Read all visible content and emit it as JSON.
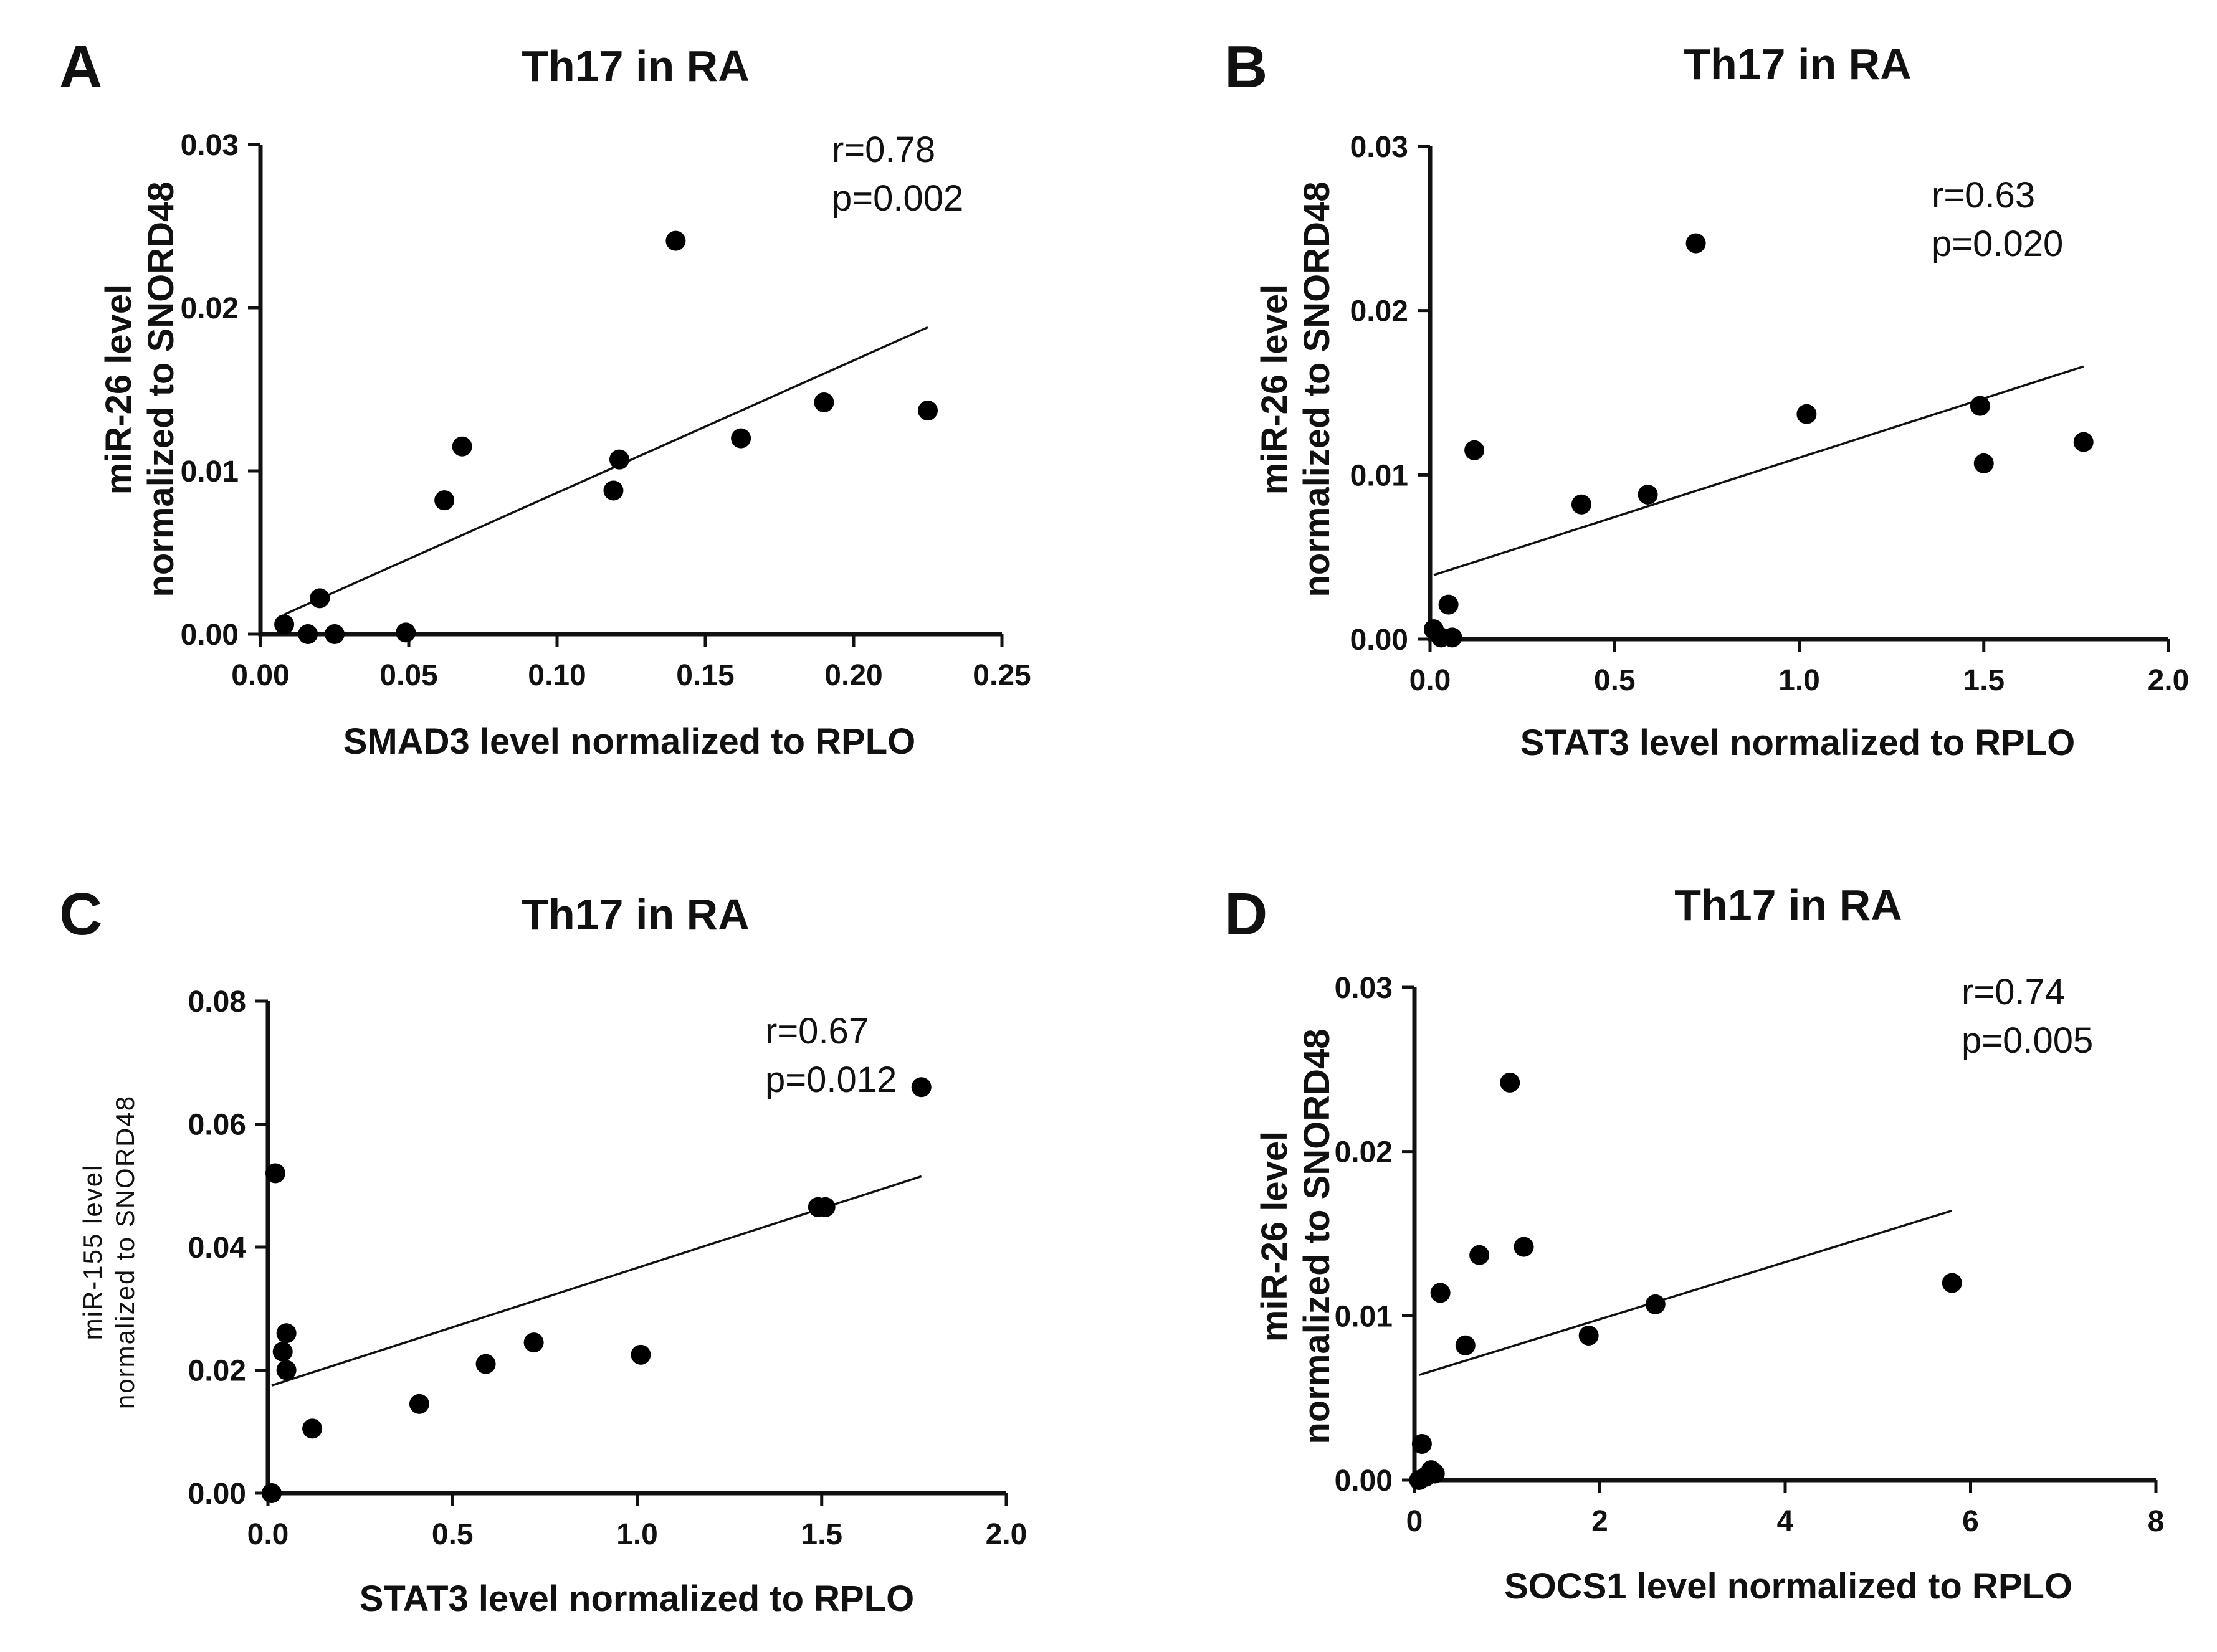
{
  "chart_data": [
    {
      "type": "scatter",
      "panel": "A",
      "title": "Th17 in RA",
      "xlabel": "SMAD3 level normalized to RPLO",
      "ylabel": [
        "miR-26 level",
        "normalized to SNORD48"
      ],
      "xlim": [
        0,
        0.25
      ],
      "ylim": [
        0,
        0.03
      ],
      "xticks": [
        "0.00",
        "0.05",
        "0.10",
        "0.15",
        "0.20",
        "0.25"
      ],
      "yticks": [
        "0.00",
        "0.01",
        "0.02",
        "0.03"
      ],
      "stats": [
        "r=0.78",
        "p=0.002"
      ],
      "points": [
        {
          "x": 0.008,
          "y": 0.0006
        },
        {
          "x": 0.016,
          "y": 0.0
        },
        {
          "x": 0.02,
          "y": 0.0022
        },
        {
          "x": 0.025,
          "y": 0.0
        },
        {
          "x": 0.049,
          "y": 0.0001
        },
        {
          "x": 0.062,
          "y": 0.0082
        },
        {
          "x": 0.068,
          "y": 0.0115
        },
        {
          "x": 0.119,
          "y": 0.0088
        },
        {
          "x": 0.121,
          "y": 0.0107
        },
        {
          "x": 0.14,
          "y": 0.0241
        },
        {
          "x": 0.162,
          "y": 0.012
        },
        {
          "x": 0.19,
          "y": 0.0142
        },
        {
          "x": 0.225,
          "y": 0.0137
        }
      ],
      "fit": [
        {
          "x": 0.008,
          "y": 0.0012
        },
        {
          "x": 0.225,
          "y": 0.0188
        }
      ]
    },
    {
      "type": "scatter",
      "panel": "B",
      "title": "Th17 in RA",
      "xlabel": "STAT3 level normalized to RPLO",
      "ylabel": [
        "miR-26 level",
        "normalized to SNORD48"
      ],
      "xlim": [
        0,
        2.0
      ],
      "ylim": [
        0,
        0.03
      ],
      "xticks": [
        "0.0",
        "0.5",
        "1.0",
        "1.5",
        "2.0"
      ],
      "yticks": [
        "0.00",
        "0.01",
        "0.02",
        "0.03"
      ],
      "stats": [
        "r=0.63",
        "p=0.020"
      ],
      "points": [
        {
          "x": 0.01,
          "y": 0.0006
        },
        {
          "x": 0.03,
          "y": 0.0001
        },
        {
          "x": 0.05,
          "y": 0.0021
        },
        {
          "x": 0.06,
          "y": 0.0001
        },
        {
          "x": 0.12,
          "y": 0.0115
        },
        {
          "x": 0.41,
          "y": 0.0082
        },
        {
          "x": 0.59,
          "y": 0.0088
        },
        {
          "x": 0.72,
          "y": 0.0241
        },
        {
          "x": 1.02,
          "y": 0.0137
        },
        {
          "x": 1.49,
          "y": 0.0142
        },
        {
          "x": 1.5,
          "y": 0.0107
        },
        {
          "x": 1.77,
          "y": 0.012
        }
      ],
      "fit": [
        {
          "x": 0.01,
          "y": 0.0039
        },
        {
          "x": 1.77,
          "y": 0.0166
        }
      ]
    },
    {
      "type": "scatter",
      "panel": "C",
      "title": "Th17 in RA",
      "xlabel": "STAT3 level normalized to RPLO",
      "ylabel": [
        "miR-155 level",
        "normalized to SNORD48"
      ],
      "xlim": [
        0,
        2.0
      ],
      "ylim": [
        0,
        0.08
      ],
      "xticks": [
        "0.0",
        "0.5",
        "1.0",
        "1.5",
        "2.0"
      ],
      "yticks": [
        "0.00",
        "0.02",
        "0.04",
        "0.06",
        "0.08"
      ],
      "stats": [
        "r=0.67",
        "p=0.012"
      ],
      "points": [
        {
          "x": 0.01,
          "y": 0.0
        },
        {
          "x": 0.02,
          "y": 0.052
        },
        {
          "x": 0.04,
          "y": 0.023
        },
        {
          "x": 0.05,
          "y": 0.026
        },
        {
          "x": 0.05,
          "y": 0.02
        },
        {
          "x": 0.12,
          "y": 0.0105
        },
        {
          "x": 0.41,
          "y": 0.0145
        },
        {
          "x": 0.59,
          "y": 0.021
        },
        {
          "x": 0.72,
          "y": 0.0245
        },
        {
          "x": 1.01,
          "y": 0.0225
        },
        {
          "x": 1.49,
          "y": 0.0465
        },
        {
          "x": 1.51,
          "y": 0.0465
        },
        {
          "x": 1.77,
          "y": 0.066
        }
      ],
      "fit": [
        {
          "x": 0.01,
          "y": 0.0175
        },
        {
          "x": 1.77,
          "y": 0.0515
        }
      ]
    },
    {
      "type": "scatter",
      "panel": "D",
      "title": "Th17 in RA",
      "xlabel": "SOCS1 level normalized to RPLO",
      "ylabel": [
        "miR-26 level",
        "normalized to SNORD48"
      ],
      "xlim": [
        0,
        8
      ],
      "ylim": [
        0,
        0.03
      ],
      "xticks": [
        "0",
        "2",
        "4",
        "6",
        "8"
      ],
      "yticks": [
        "0.00",
        "0.01",
        "0.02",
        "0.03"
      ],
      "stats": [
        "r=0.74",
        "p=0.005"
      ],
      "points": [
        {
          "x": 0.05,
          "y": 0.0
        },
        {
          "x": 0.08,
          "y": 0.0022
        },
        {
          "x": 0.12,
          "y": 0.0002
        },
        {
          "x": 0.18,
          "y": 0.0006
        },
        {
          "x": 0.22,
          "y": 0.0004
        },
        {
          "x": 0.28,
          "y": 0.0114
        },
        {
          "x": 0.55,
          "y": 0.0082
        },
        {
          "x": 0.7,
          "y": 0.0137
        },
        {
          "x": 1.03,
          "y": 0.0242
        },
        {
          "x": 1.18,
          "y": 0.0142
        },
        {
          "x": 1.88,
          "y": 0.0088
        },
        {
          "x": 2.6,
          "y": 0.0107
        },
        {
          "x": 5.8,
          "y": 0.012
        }
      ],
      "fit": [
        {
          "x": 0.05,
          "y": 0.0064
        },
        {
          "x": 5.8,
          "y": 0.0164
        }
      ]
    }
  ]
}
